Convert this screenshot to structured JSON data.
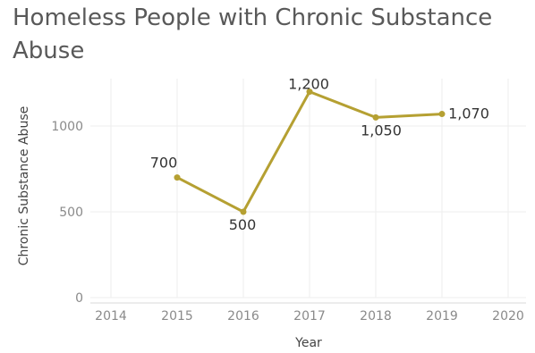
{
  "title": {
    "line1": "Homeless People with Chronic Substance",
    "line2": "Abuse"
  },
  "chart_data": {
    "type": "line",
    "title": "Homeless People with Chronic Substance Abuse",
    "xlabel": "Year",
    "ylabel": "Chronic Substance Abuse",
    "x_ticks": [
      "2014",
      "2015",
      "2016",
      "2017",
      "2018",
      "2019",
      "2020"
    ],
    "y_ticks": [
      "0",
      "500",
      "1000"
    ],
    "xlim": [
      2014,
      2020
    ],
    "ylim": [
      0,
      1200
    ],
    "grid": true,
    "series": [
      {
        "color": "#b5a032",
        "x": [
          2015,
          2016,
          2017,
          2018,
          2019
        ],
        "y": [
          700,
          500,
          1200,
          1050,
          1070
        ],
        "labels": [
          "700",
          "500",
          "1,200",
          "1,050",
          "1,070"
        ]
      }
    ]
  }
}
